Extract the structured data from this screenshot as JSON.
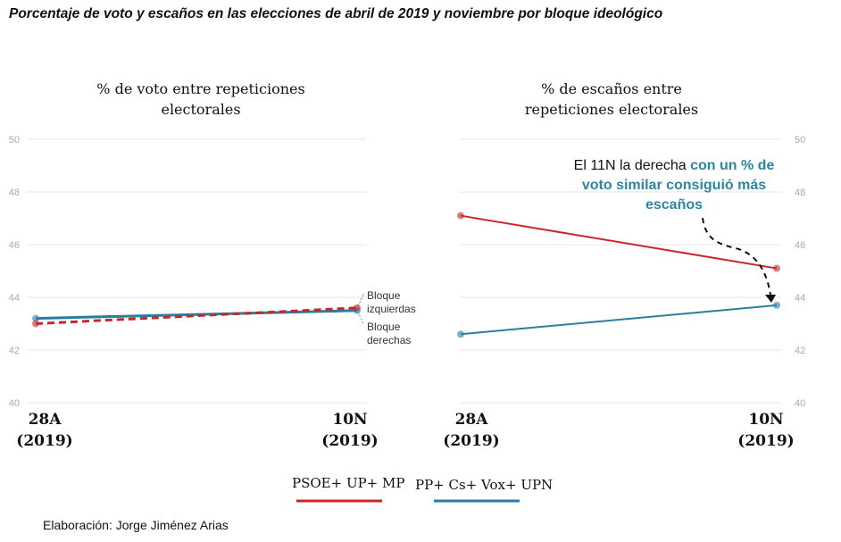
{
  "title": "Porcentaje de voto y escaños en las elecciones de abril de 2019 y noviembre por bloque ideológico",
  "credit": "Elaboración: Jorge Jiménez Arias",
  "colors": {
    "left_bloc": "#c62828",
    "right_bloc": "#2a7fa0"
  },
  "legend": [
    {
      "name": "PSOE+ UP+ MP",
      "color": "#c62828"
    },
    {
      "name": "PP+ Cs+ Vox+ UPN",
      "color": "#2a7fa0"
    }
  ],
  "chart_data": [
    {
      "type": "line",
      "title_line1": "% de voto entre repeticiones",
      "title_line2": "electorales",
      "categories": [
        [
          "28A",
          "(2019)"
        ],
        [
          "10N",
          "(2019)"
        ]
      ],
      "yticks": [
        "40",
        "42",
        "44",
        "46",
        "48",
        "50"
      ],
      "ylim": [
        40,
        50
      ],
      "series": [
        {
          "name": "Bloque izquierdas",
          "label1": "Bloque",
          "label2": "izquierdas",
          "values": [
            43.0,
            43.6
          ],
          "dashed": true
        },
        {
          "name": "Bloque derechas",
          "label1": "Bloque",
          "label2": "derechas",
          "values": [
            43.2,
            43.5
          ],
          "dashed": false
        }
      ]
    },
    {
      "type": "line",
      "title_line1": "% de escaños entre",
      "title_line2": "repeticiones electorales",
      "categories": [
        [
          "28A",
          "(2019)"
        ],
        [
          "10N",
          "(2019)"
        ]
      ],
      "yticks": [
        "40",
        "42",
        "44",
        "46",
        "48",
        "50"
      ],
      "ylim": [
        40,
        50
      ],
      "series": [
        {
          "name": "PSOE+ UP+ MP",
          "values": [
            47.1,
            45.1
          ]
        },
        {
          "name": "PP+ Cs+ Vox+ UPN",
          "values": [
            42.6,
            43.7
          ]
        }
      ],
      "annotation": {
        "plain": "El 11N la derecha ",
        "highlight": "con un % de voto similar consiguió más escaños"
      }
    }
  ]
}
